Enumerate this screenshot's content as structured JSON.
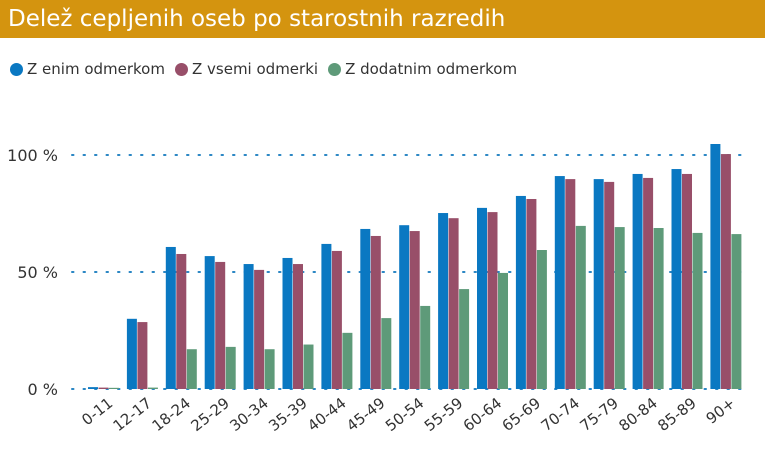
{
  "chart_data": {
    "type": "bar",
    "title": "Delež cepljenih oseb po starostnih razredih",
    "categories": [
      "0-11",
      "12-17",
      "18-24",
      "25-29",
      "30-34",
      "35-39",
      "40-44",
      "45-49",
      "50-54",
      "55-59",
      "60-64",
      "65-69",
      "70-74",
      "75-79",
      "80-84",
      "85-89",
      "90+"
    ],
    "series": [
      {
        "name": "Z enim odmerkom",
        "color": "#0a78c2",
        "values": [
          0.8,
          30,
          60.7,
          56.8,
          53.4,
          56,
          62,
          68.4,
          70,
          75.2,
          77.4,
          82.5,
          91,
          89.7,
          91.9,
          94,
          104.7
        ]
      },
      {
        "name": "Z vsemi odmerki",
        "color": "#984f69",
        "values": [
          0.6,
          28.6,
          57.7,
          54.3,
          50.9,
          53.4,
          59,
          65.4,
          67.5,
          73,
          75.6,
          81.2,
          89.7,
          88.5,
          90.2,
          91.9,
          100.4
        ]
      },
      {
        "name": "Z dodatnim odmerkom",
        "color": "#5e9a79",
        "values": [
          0.5,
          0.6,
          17,
          18,
          17,
          19,
          24,
          30.3,
          35.5,
          42.7,
          49.6,
          59.4,
          69.7,
          69.2,
          68.8,
          66.7,
          66.2
        ]
      }
    ],
    "yticks": [
      "0 %",
      "50 %",
      "100 %"
    ],
    "ytick_values": [
      0,
      50,
      100
    ],
    "ylim": [
      0,
      110
    ],
    "grid": "horizontal dotted",
    "legend": "top-left"
  },
  "header_color": "#d4940f"
}
